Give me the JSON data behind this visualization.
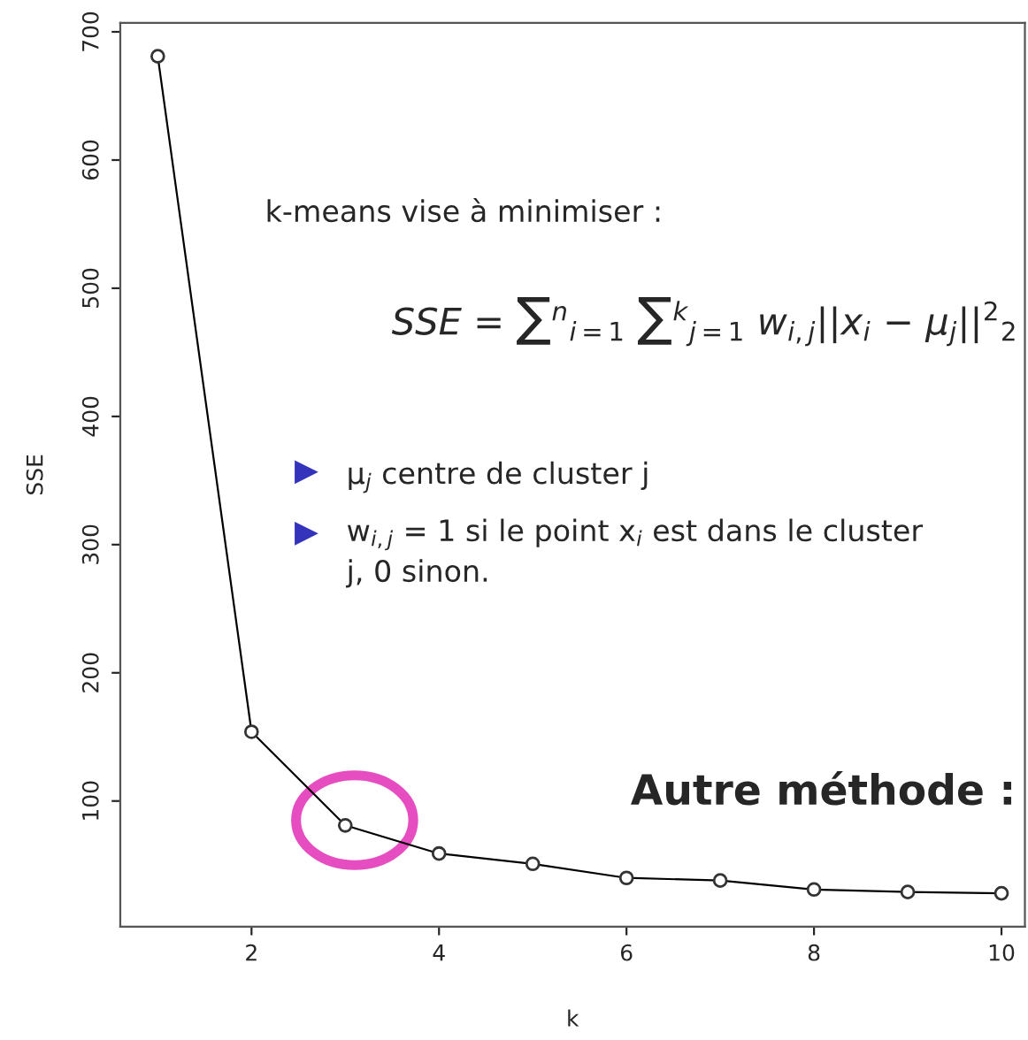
{
  "chart_data": {
    "type": "line",
    "xlabel": "k",
    "ylabel": "SSE",
    "x": [
      1,
      2,
      3,
      4,
      5,
      6,
      7,
      8,
      9,
      10
    ],
    "series": [
      {
        "color": "#000000",
        "values": [
          681,
          154,
          81,
          59,
          51,
          40,
          38,
          31,
          29,
          28
        ]
      }
    ],
    "marker": "circle",
    "line_style": "solid",
    "grid": false,
    "legend": false,
    "xlim": [
      0.6,
      10.25
    ],
    "ylim": [
      2,
      707
    ],
    "xticks": [
      2,
      4,
      6,
      8,
      10
    ],
    "yticks": [
      100,
      200,
      300,
      400,
      500,
      600,
      700
    ],
    "annotations": [
      "k-means vise à minimiser :",
      "SSE = ∑$^{n}$$_{i=1}$ ∑$^{k}$$_{j=1}$ w$_{i,j}$||x$_{i}$ − μ$_{j}$||$^{2}$$_{2}$",
      "μ$_{j}$ centre de cluster j",
      "w$_{i,j}$ = 1 si le point x$_{i}$ est dans le cluster\nj, 0 sinon.",
      "Autre méthode :"
    ]
  }
}
